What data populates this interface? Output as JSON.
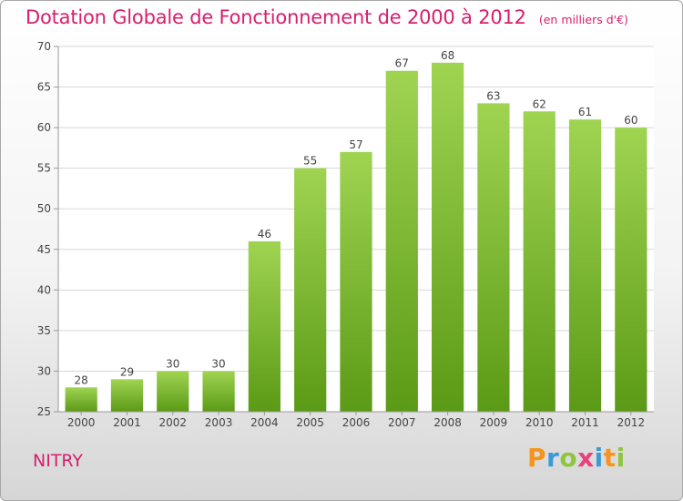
{
  "header": {
    "title": "Dotation Globale de Fonctionnement de 2000 à 2012",
    "subtitle": "(en milliers d'€)"
  },
  "footer": {
    "commune": "NITRY",
    "brand": "Proxiti",
    "brand_letters": [
      {
        "ch": "P",
        "color": "#f7941d"
      },
      {
        "ch": "r",
        "color": "#3a9ad9"
      },
      {
        "ch": "o",
        "color": "#8cc63f"
      },
      {
        "ch": "x",
        "color": "#e8427c"
      },
      {
        "ch": "i",
        "color": "#3a9ad9"
      },
      {
        "ch": "t",
        "color": "#f7941d"
      },
      {
        "ch": "i",
        "color": "#8cc63f"
      }
    ]
  },
  "chart_data": {
    "type": "bar",
    "title": "Dotation Globale de Fonctionnement de 2000 à 2012",
    "subtitle": "(en milliers d'€)",
    "categories": [
      "2000",
      "2001",
      "2002",
      "2003",
      "2004",
      "2005",
      "2006",
      "2007",
      "2008",
      "2009",
      "2010",
      "2011",
      "2012"
    ],
    "values": [
      28,
      29,
      30,
      30,
      46,
      55,
      57,
      67,
      68,
      63,
      62,
      61,
      60
    ],
    "ylim": [
      25,
      70
    ],
    "yticks": [
      25,
      30,
      35,
      40,
      45,
      50,
      55,
      60,
      65,
      70
    ],
    "grid": "horizontal",
    "legend": "none",
    "colors": {
      "bar_top": "#9fd451",
      "bar_bottom": "#5b9a16",
      "grid": "#d8d8d8",
      "axis": "#999999"
    }
  }
}
